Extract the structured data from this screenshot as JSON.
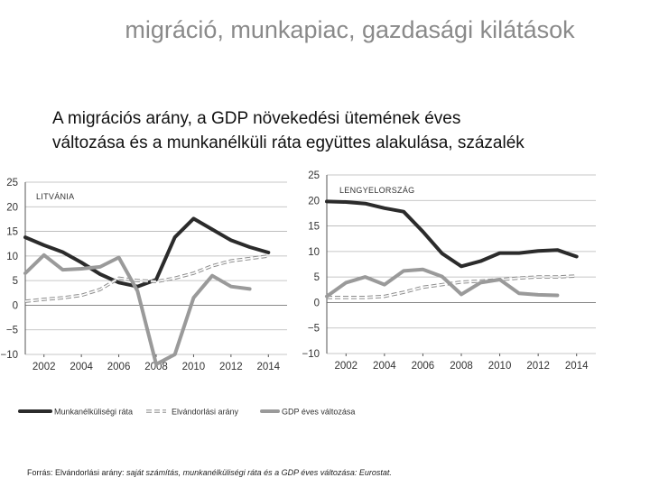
{
  "header": {
    "title": "migráció, munkapiac, gazdasági kilátások",
    "subtitle_line1": "A migrációs arány, a GDP növekedési ütemének éves",
    "subtitle_line2": "változása és a munkanélküli ráta együttes alakulása, százalék"
  },
  "legend": {
    "items": [
      {
        "label": "Munkanélküliségi ráta",
        "color": "#2b2b2b",
        "style": "solid"
      },
      {
        "label": "Elvándorlási arány",
        "color": "#9a9a9a",
        "style": "double-dashed"
      },
      {
        "label": "GDP éves változása",
        "color": "#9a9a9a",
        "style": "solid"
      }
    ]
  },
  "source": {
    "prefix": "Forrás: Elvándorlási arány:",
    "text": " saját számítás, munkanélküliségi ráta és a GDP éves változása: Eurostat."
  },
  "chart_data": [
    {
      "type": "line",
      "title": "LITVÁNIA",
      "ylim": [
        -10,
        25
      ],
      "yticks": [
        "25",
        "20",
        "15",
        "10",
        "5",
        "0",
        "−5",
        "−10"
      ],
      "xticks": [
        "2002",
        "2004",
        "2006",
        "2008",
        "2010",
        "2012",
        "2014"
      ],
      "xlim": [
        2001,
        2015
      ],
      "series": [
        {
          "name": "Munkanélküliségi ráta",
          "x": [
            2001,
            2002,
            2003,
            2004,
            2005,
            2006,
            2007,
            2008,
            2009,
            2010,
            2011,
            2012,
            2013,
            2014
          ],
          "values": [
            13.8,
            12.2,
            10.8,
            8.7,
            6.3,
            4.6,
            3.8,
            5.2,
            13.8,
            17.6,
            15.4,
            13.2,
            11.8,
            10.7
          ]
        },
        {
          "name": "Elvándorlási arány",
          "x": [
            2001,
            2002,
            2003,
            2004,
            2005,
            2006,
            2007,
            2008,
            2009,
            2010,
            2011,
            2012,
            2013,
            2014
          ],
          "values": [
            0.8,
            1.2,
            1.5,
            2.0,
            3.2,
            5.5,
            5.0,
            4.8,
            5.5,
            6.5,
            8.0,
            9.0,
            9.5,
            10.0
          ]
        },
        {
          "name": "GDP éves változása",
          "x": [
            2001,
            2002,
            2003,
            2004,
            2005,
            2006,
            2007,
            2008,
            2009,
            2010,
            2011,
            2012,
            2013
          ],
          "values": [
            6.5,
            10.2,
            7.2,
            7.4,
            7.8,
            9.7,
            2.9,
            -12.0,
            -10.0,
            1.5,
            6.0,
            3.8,
            3.3
          ]
        }
      ]
    },
    {
      "type": "line",
      "title": "LENGYELORSZÁG",
      "ylim": [
        -10,
        25
      ],
      "yticks": [
        "25",
        "20",
        "15",
        "10",
        "5",
        "0",
        "−5",
        "−10"
      ],
      "xticks": [
        "2002",
        "2004",
        "2006",
        "2008",
        "2010",
        "2012",
        "2014"
      ],
      "xlim": [
        2001,
        2015
      ],
      "series": [
        {
          "name": "Munkanélküliségi ráta",
          "x": [
            2001,
            2002,
            2003,
            2004,
            2005,
            2006,
            2007,
            2008,
            2009,
            2010,
            2011,
            2012,
            2013,
            2014
          ],
          "values": [
            19.8,
            19.7,
            19.4,
            18.5,
            17.8,
            13.9,
            9.6,
            7.1,
            8.1,
            9.7,
            9.7,
            10.1,
            10.3,
            9.0
          ]
        },
        {
          "name": "Elvándorlási arány",
          "x": [
            2001,
            2002,
            2003,
            2004,
            2005,
            2006,
            2007,
            2008,
            2009,
            2010,
            2011,
            2012,
            2013,
            2014
          ],
          "values": [
            1.0,
            1.0,
            1.0,
            1.2,
            2.0,
            3.0,
            3.5,
            4.0,
            4.2,
            4.5,
            4.8,
            5.0,
            5.0,
            5.2
          ]
        },
        {
          "name": "GDP éves változása",
          "x": [
            2001,
            2002,
            2003,
            2004,
            2005,
            2006,
            2007,
            2008,
            2009,
            2010,
            2011,
            2012,
            2013
          ],
          "values": [
            1.2,
            3.9,
            5.0,
            3.5,
            6.2,
            6.5,
            5.1,
            1.6,
            3.9,
            4.5,
            1.8,
            1.5,
            1.4
          ]
        }
      ]
    }
  ]
}
